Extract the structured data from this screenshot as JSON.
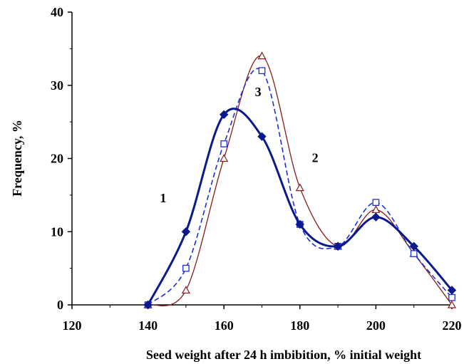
{
  "chart_data": {
    "type": "line",
    "xlabel": "Seed weight after 24 h imbibition, % initial weight",
    "ylabel": "Frequency, %",
    "xlim": [
      120,
      220
    ],
    "ylim": [
      0,
      40
    ],
    "x_ticks": [
      "120",
      "140",
      "160",
      "180",
      "200",
      "220"
    ],
    "y_ticks": [
      "0",
      "10",
      "20",
      "30",
      "40"
    ],
    "grid": false,
    "x": [
      140,
      150,
      160,
      170,
      180,
      190,
      200,
      210,
      220
    ],
    "series": [
      {
        "name": "1",
        "values": [
          0,
          10,
          26,
          23,
          11,
          8,
          12,
          8,
          2
        ],
        "color": "#0a1a8c",
        "marker": "diamond",
        "line_style": "solid-thick"
      },
      {
        "name": "2",
        "values": [
          0,
          2,
          20,
          34,
          16,
          8,
          13,
          7,
          0
        ],
        "color": "#8b1a1a",
        "marker": "triangle",
        "line_style": "solid-thin"
      },
      {
        "name": "3",
        "values": [
          0,
          5,
          22,
          32,
          11,
          8,
          14,
          7,
          1
        ],
        "color": "#1f2fd6",
        "marker": "square",
        "line_style": "dashed"
      }
    ],
    "curve_labels": [
      {
        "text": "1",
        "at": [
          144,
          14
        ]
      },
      {
        "text": "2",
        "at": [
          184,
          19.5
        ]
      },
      {
        "text": "3",
        "at": [
          169,
          28.5
        ]
      }
    ]
  }
}
